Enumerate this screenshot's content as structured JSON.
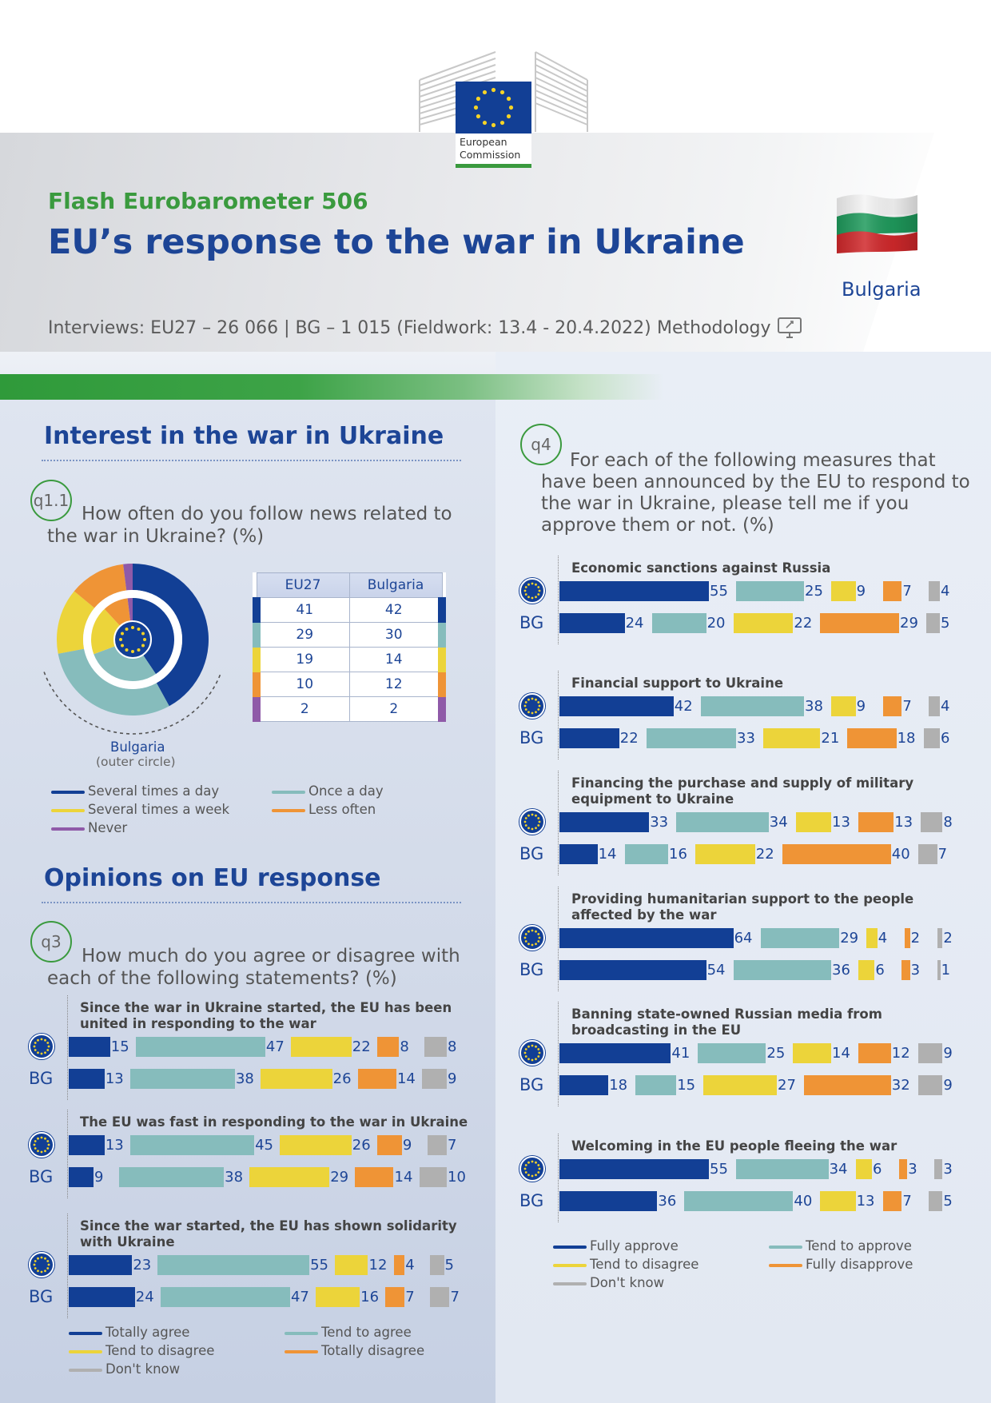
{
  "header": {
    "logo_line1": "European",
    "logo_line2": "Commission",
    "subtitle": "Flash Eurobarometer 506",
    "title": "EU’s response to the war in Ukraine",
    "country": "Bulgaria",
    "interviews": "Interviews: EU27 – 26 066 | BG – 1 015 (Fieldwork: 13.4 - 20.4.2022)",
    "methodology": "Methodology"
  },
  "colors": {
    "navy": "#123f95",
    "teal": "#86bcbc",
    "yellow": "#ecd43a",
    "orange": "#ef9436",
    "grey": "#b0b0b0",
    "purple": "#8f5aa8",
    "green": "#3a9a3e"
  },
  "sections": {
    "interest_title": "Interest in the war in Ukraine",
    "opinions_title": "Opinions on EU response"
  },
  "q1": {
    "tag": "q1.1",
    "question_line1": "How often do you follow news related to",
    "question_line2": "the war in Ukraine? (%)",
    "donut_caption": "Bulgaria",
    "donut_caption_sub": "(outer circle)",
    "table_headers": [
      "EU27",
      "Bulgaria"
    ],
    "legend": [
      "Several times a day",
      "Once a day",
      "Several times a week",
      "Less often",
      "Never"
    ]
  },
  "q3": {
    "tag": "q3",
    "question_line1": "How much do you agree or disagree with",
    "question_line2": "each of the following statements? (%)",
    "bg_label": "BG",
    "legend": [
      "Totally agree",
      "Tend to agree",
      "Tend to disagree",
      "Totally disagree",
      "Don't know"
    ]
  },
  "q4": {
    "tag": "q4",
    "question_line1": "For each of the following measures that",
    "question_line2": "have been announced by the EU to respond to",
    "question_line3": "the war in Ukraine, please tell me if you",
    "question_line4": "approve them or not. (%)",
    "bg_label": "BG",
    "legend": [
      "Fully approve",
      "Tend to approve",
      "Tend to disagree",
      "Fully disapprove",
      "Don't know"
    ]
  },
  "chart_data": [
    {
      "type": "pie",
      "title": "How often do you follow news related to the war in Ukraine? (%)",
      "categories": [
        "Several times a day",
        "Once a day",
        "Several times a week",
        "Less often",
        "Never"
      ],
      "series": [
        {
          "name": "EU27",
          "values": [
            41,
            29,
            19,
            10,
            2
          ]
        },
        {
          "name": "Bulgaria",
          "values": [
            42,
            30,
            14,
            12,
            2
          ]
        }
      ]
    },
    {
      "type": "bar",
      "title": "How much do you agree or disagree with each of the following statements? (%)",
      "categories": [
        "Totally agree",
        "Tend to agree",
        "Tend to disagree",
        "Totally disagree",
        "Don't know"
      ],
      "items": [
        {
          "label_lines": [
            "Since the war in Ukraine started, the EU has been",
            "united in responding to the war"
          ],
          "eu": [
            15,
            47,
            22,
            8,
            8
          ],
          "bg": [
            13,
            38,
            26,
            14,
            9
          ]
        },
        {
          "label_lines": [
            "The EU was fast in responding to the war in Ukraine"
          ],
          "eu": [
            13,
            45,
            26,
            9,
            7
          ],
          "bg": [
            9,
            38,
            29,
            14,
            10
          ]
        },
        {
          "label_lines": [
            "Since the war started, the EU has shown solidarity",
            "with Ukraine"
          ],
          "eu": [
            23,
            55,
            12,
            4,
            5
          ],
          "bg": [
            24,
            47,
            16,
            7,
            7
          ]
        }
      ]
    },
    {
      "type": "bar",
      "title": "For each of the following measures that have been announced by the EU to respond to the war in Ukraine, please tell me if you approve them or not. (%)",
      "categories": [
        "Fully approve",
        "Tend to approve",
        "Tend to disagree",
        "Fully disapprove",
        "Don't know"
      ],
      "items": [
        {
          "label_lines": [
            "Economic sanctions against Russia"
          ],
          "eu": [
            55,
            25,
            9,
            7,
            4
          ],
          "bg": [
            24,
            20,
            22,
            29,
            5
          ]
        },
        {
          "label_lines": [
            "Financial support to Ukraine"
          ],
          "eu": [
            42,
            38,
            9,
            7,
            4
          ],
          "bg": [
            22,
            33,
            21,
            18,
            6
          ]
        },
        {
          "label_lines": [
            "Financing the purchase and supply of military",
            "equipment to Ukraine"
          ],
          "eu": [
            33,
            34,
            13,
            13,
            8
          ],
          "bg": [
            14,
            16,
            22,
            40,
            7
          ]
        },
        {
          "label_lines": [
            "Providing humanitarian support to the people",
            "affected by the war"
          ],
          "eu": [
            64,
            29,
            4,
            2,
            2
          ],
          "bg": [
            54,
            36,
            6,
            3,
            1
          ]
        },
        {
          "label_lines": [
            "Banning state-owned Russian media from",
            "broadcasting in the EU"
          ],
          "eu": [
            41,
            25,
            14,
            12,
            9
          ],
          "bg": [
            18,
            15,
            27,
            32,
            9
          ]
        },
        {
          "label_lines": [
            "Welcoming in the EU people fleeing the war"
          ],
          "eu": [
            55,
            34,
            6,
            3,
            3
          ],
          "bg": [
            36,
            40,
            13,
            7,
            5
          ]
        }
      ]
    }
  ]
}
